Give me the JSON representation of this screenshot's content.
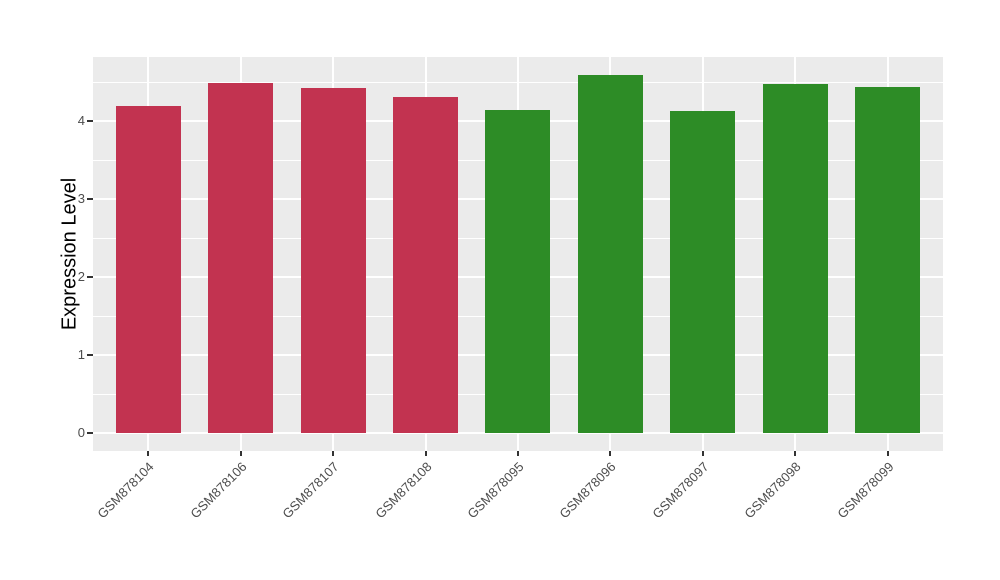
{
  "chart_data": {
    "type": "bar",
    "title": "",
    "xlabel": "",
    "ylabel": "Expression Level",
    "categories": [
      "GSM878104",
      "GSM878106",
      "GSM878107",
      "GSM878108",
      "GSM878095",
      "GSM878096",
      "GSM878097",
      "GSM878098",
      "GSM878099"
    ],
    "values": [
      4.19,
      4.49,
      4.42,
      4.31,
      4.14,
      4.59,
      4.13,
      4.47,
      4.44
    ],
    "bar_groups": [
      "red",
      "red",
      "red",
      "red",
      "green",
      "green",
      "green",
      "green",
      "green"
    ],
    "group_colors": {
      "red": "#c23350",
      "green": "#2d8c26"
    },
    "yticks": [
      0,
      1,
      2,
      3,
      4
    ],
    "minor_gridlines": [
      0.5,
      1.5,
      2.5,
      3.5,
      4.5
    ],
    "ylim": [
      -0.23,
      4.82
    ],
    "x_tick_rotation_deg": 45,
    "legend": "none",
    "grid": "on",
    "panel_background": "#ebebeb",
    "gridline_color": "#ffffff",
    "axis_text_color": "#4d4d4d",
    "tick_mark_color": "#333333"
  }
}
